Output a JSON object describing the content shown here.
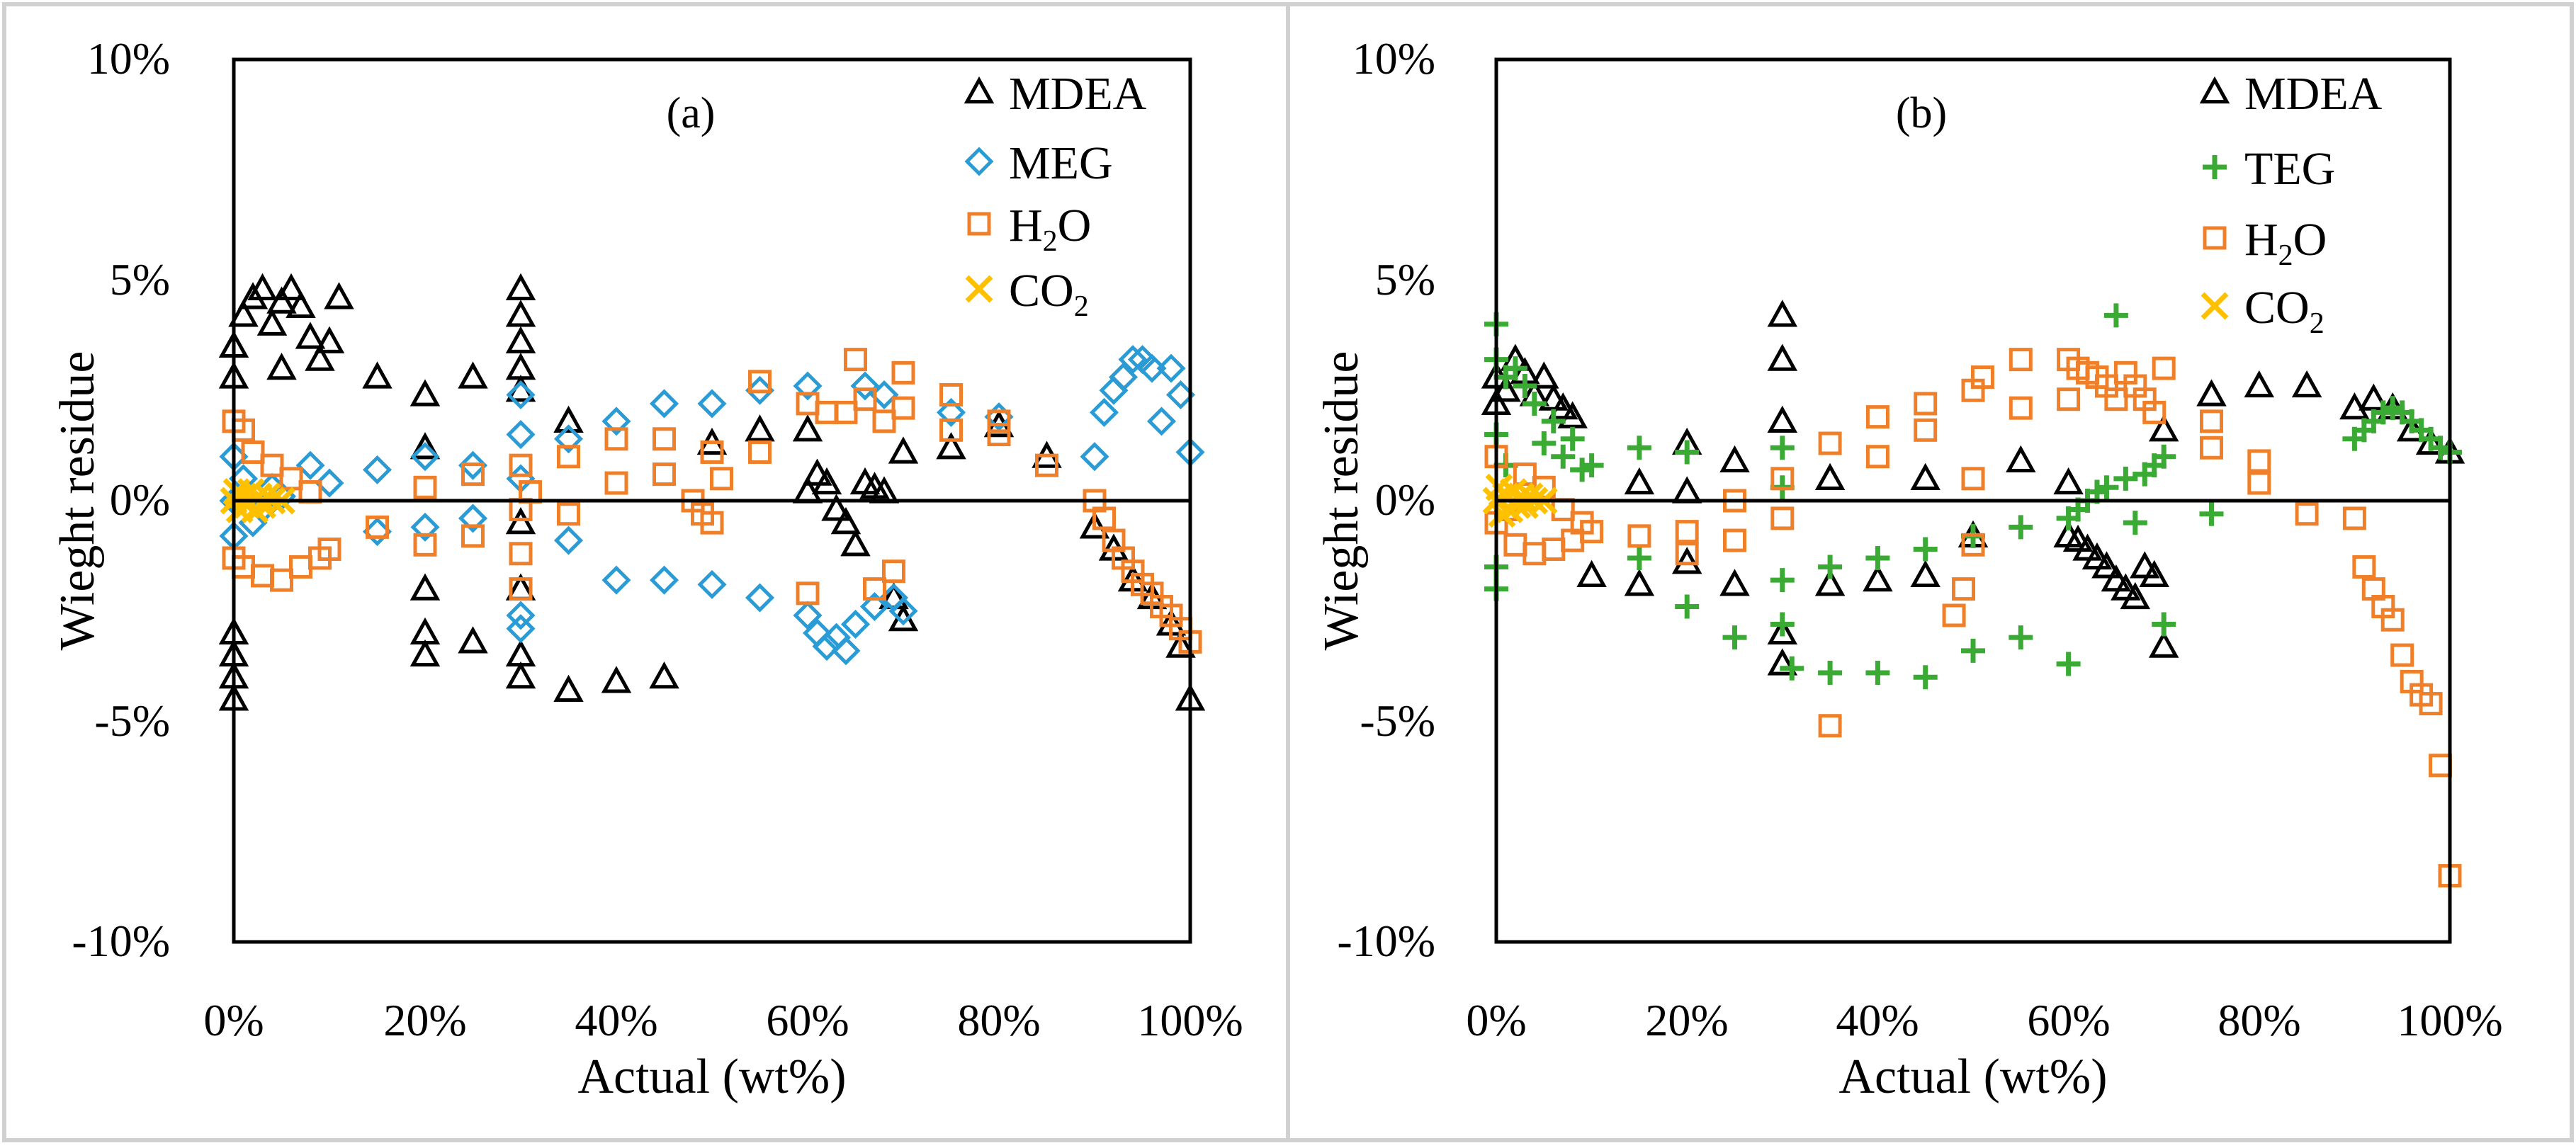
{
  "colors": {
    "MDEA": "#000000",
    "MEG": "#2a9bd4",
    "TEG": "#3aaa35",
    "H2O": "#f07f2a",
    "CO2": "#ffc000",
    "panel_border": "#d0d0d0"
  },
  "legend_text": {
    "MDEA": "MDEA",
    "MEG": "MEG",
    "TEG": "TEG",
    "H2O_main": "H",
    "H2O_sub": "2",
    "H2O_tail": "O",
    "CO2_main": "CO",
    "CO2_sub": "2"
  },
  "chart_data": [
    {
      "type": "scatter",
      "panel_label": "(a)",
      "xlabel": "Actual (wt%)",
      "ylabel": "Wieght residue",
      "xlim": [
        0,
        100
      ],
      "ylim": [
        -10,
        10
      ],
      "x_ticks": [
        "0%",
        "20%",
        "40%",
        "60%",
        "80%",
        "100%"
      ],
      "y_ticks": [
        "10%",
        "5%",
        "0%",
        "-5%",
        "-10%"
      ],
      "grid": false,
      "legend_position": "top-right",
      "series": [
        {
          "name": "MDEA",
          "marker": "triangle",
          "x": [
            0,
            0,
            0,
            0,
            0,
            0,
            1,
            2,
            3,
            4,
            5,
            5,
            6,
            7,
            8,
            9,
            10,
            11,
            15,
            20,
            20,
            20,
            20,
            20,
            25,
            25,
            30,
            30,
            30,
            30,
            30,
            30,
            30,
            30,
            30,
            35,
            35,
            40,
            45,
            50,
            55,
            60,
            60,
            61,
            62,
            63,
            64,
            65,
            66,
            67,
            68,
            69,
            70,
            70,
            75,
            80,
            85,
            90,
            92,
            94,
            96,
            98,
            99,
            100
          ],
          "y": [
            -4.5,
            -4,
            -3.5,
            -3,
            3.5,
            2.8,
            4.2,
            4.6,
            4.8,
            4,
            3,
            4.5,
            4.8,
            4.4,
            3.7,
            3.2,
            3.6,
            4.6,
            2.8,
            2.4,
            1.2,
            -2,
            -3,
            -3.5,
            2.8,
            -3.2,
            4.8,
            4.2,
            3.6,
            3,
            2.5,
            -0.5,
            -2,
            -3.5,
            -4,
            -4.3,
            1.8,
            -4.1,
            -4,
            1.3,
            1.6,
            1.6,
            0.2,
            0.6,
            0.4,
            -0.2,
            -0.5,
            -1,
            0.4,
            0.3,
            0.2,
            -2.2,
            -2.7,
            1.1,
            1.2,
            1.7,
            1,
            -0.6,
            -1.1,
            -1.8,
            -2.2,
            -2.8,
            -3.3,
            -4.5
          ]
        },
        {
          "name": "MEG",
          "marker": "diamond",
          "x": [
            0,
            0,
            0,
            1,
            2,
            3,
            4,
            5,
            8,
            10,
            15,
            15,
            20,
            20,
            25,
            25,
            30,
            30,
            30,
            30,
            30,
            35,
            35,
            40,
            40,
            45,
            45,
            50,
            50,
            55,
            55,
            60,
            60,
            61,
            62,
            63,
            64,
            65,
            66,
            67,
            68,
            69,
            70,
            75,
            80,
            90,
            91,
            92,
            93,
            94,
            95,
            96,
            97,
            98,
            99,
            100
          ],
          "y": [
            1,
            0,
            -0.8,
            0.5,
            -0.5,
            -0.2,
            0.3,
            0.1,
            0.8,
            0.4,
            0.7,
            -0.7,
            1,
            -0.6,
            0.8,
            -0.4,
            2.4,
            1.5,
            0.5,
            -2.6,
            -2.9,
            1.4,
            -0.9,
            1.8,
            -1.8,
            2.2,
            -1.8,
            2.2,
            -1.9,
            2.5,
            -2.2,
            2.6,
            -2.6,
            -3,
            -3.3,
            -3.1,
            -3.4,
            -2.8,
            2.6,
            -2.4,
            2.4,
            -2.2,
            -2.5,
            2,
            1.9,
            1,
            2,
            2.5,
            2.8,
            3.2,
            3.2,
            3,
            1.8,
            3,
            2.4,
            1.1
          ]
        },
        {
          "name": "H2O",
          "marker": "square",
          "x": [
            0,
            0,
            1,
            1,
            2,
            3,
            4,
            5,
            6,
            7,
            8,
            9,
            10,
            15,
            20,
            20,
            25,
            25,
            30,
            30,
            30,
            30,
            31,
            35,
            35,
            40,
            40,
            45,
            45,
            48,
            49,
            50,
            50,
            51,
            55,
            55,
            60,
            60,
            62,
            64,
            65,
            66,
            67,
            68,
            69,
            70,
            70,
            75,
            75,
            80,
            80,
            85,
            90,
            91,
            92,
            93,
            94,
            95,
            96,
            97,
            98,
            99,
            100
          ],
          "y": [
            1.8,
            -1.3,
            1.6,
            -1.5,
            1.1,
            -1.7,
            0.8,
            -1.8,
            0.5,
            -1.5,
            0.2,
            -1.3,
            -1.1,
            -0.6,
            0.3,
            -1,
            0.6,
            -0.8,
            0.8,
            -0.2,
            -1.2,
            -2,
            0.2,
            1,
            -0.3,
            1.4,
            0.4,
            1.4,
            0.6,
            0,
            -0.3,
            1.1,
            -0.5,
            0.5,
            2.7,
            1.1,
            2.2,
            -2.1,
            2,
            2,
            3.2,
            2.3,
            -2,
            1.8,
            -1.6,
            2.9,
            2.1,
            2.4,
            1.6,
            1.5,
            1.8,
            0.8,
            0,
            -0.4,
            -0.9,
            -1.3,
            -1.6,
            -1.9,
            -2.1,
            -2.4,
            -2.6,
            -2.9,
            -3.2
          ]
        },
        {
          "name": "CO2",
          "marker": "x",
          "x": [
            0,
            0.3,
            0.6,
            1,
            1.4,
            1.8,
            2.2,
            2.6,
            3,
            3.5,
            4,
            5
          ],
          "y": [
            0,
            0.2,
            -0.2,
            0.1,
            -0.1,
            0.2,
            -0.2,
            0.1,
            -0.1,
            0.1,
            0,
            0
          ]
        }
      ]
    },
    {
      "type": "scatter",
      "panel_label": "(b)",
      "xlabel": "Actual (wt%)",
      "ylabel": "Wieght residue",
      "xlim": [
        0,
        100
      ],
      "ylim": [
        -10,
        10
      ],
      "x_ticks": [
        "0%",
        "20%",
        "40%",
        "60%",
        "80%",
        "100%"
      ],
      "y_ticks": [
        "10%",
        "5%",
        "0%",
        "-5%",
        "-10%"
      ],
      "grid": false,
      "legend_position": "top-right",
      "series": [
        {
          "name": "MDEA",
          "marker": "triangle",
          "x": [
            0,
            0,
            1,
            2,
            3,
            4,
            5,
            6,
            7,
            8,
            10,
            15,
            15,
            20,
            20,
            20,
            25,
            25,
            30,
            30,
            30,
            30,
            30,
            35,
            35,
            40,
            45,
            45,
            50,
            55,
            60,
            60,
            61,
            62,
            63,
            64,
            65,
            66,
            67,
            68,
            69,
            70,
            70,
            75,
            80,
            85,
            90,
            92,
            94,
            96,
            98,
            100
          ],
          "y": [
            2.8,
            2.2,
            2.5,
            3.2,
            2.9,
            2.4,
            2.8,
            2.3,
            2.1,
            1.9,
            -1.7,
            0.4,
            -1.9,
            1.3,
            0.2,
            -1.4,
            0.9,
            -1.9,
            4.2,
            3.2,
            1.8,
            -3,
            -3.7,
            0.5,
            -1.9,
            -1.8,
            0.5,
            -1.7,
            -0.8,
            0.9,
            0.4,
            -0.8,
            -0.9,
            -1.1,
            -1.3,
            -1.5,
            -1.8,
            -2,
            -2.2,
            -1.5,
            -1.7,
            -3.3,
            1.6,
            2.4,
            2.6,
            2.6,
            2.1,
            2.3,
            2.1,
            1.6,
            1.3,
            1.1
          ]
        },
        {
          "name": "TEG",
          "marker": "plus",
          "x": [
            0,
            0,
            0,
            0,
            0,
            1,
            1,
            2,
            3,
            4,
            5,
            6,
            7,
            8,
            9,
            10,
            15,
            15,
            20,
            20,
            25,
            30,
            30,
            30,
            30,
            31,
            35,
            35,
            40,
            40,
            45,
            45,
            50,
            50,
            55,
            55,
            60,
            60,
            61,
            62,
            63,
            64,
            65,
            66,
            67,
            68,
            69,
            70,
            70,
            75,
            90,
            91,
            92,
            93,
            94,
            95,
            96,
            97,
            98,
            99,
            100
          ],
          "y": [
            4,
            3.2,
            1.5,
            -1.5,
            -2,
            2.8,
            0.8,
            3,
            2.6,
            2.2,
            1.3,
            1.8,
            1,
            1.4,
            0.7,
            0.8,
            1.2,
            -1.3,
            1.1,
            -2.4,
            -3.1,
            1.2,
            0.3,
            -1.8,
            -2.8,
            -3.8,
            -1.5,
            -3.9,
            -1.3,
            -3.9,
            -1.1,
            -4,
            -0.8,
            -3.4,
            -0.6,
            -3.1,
            -0.4,
            -3.7,
            -0.2,
            0,
            0.2,
            0.3,
            4.2,
            0.5,
            -0.5,
            0.6,
            0.8,
            1,
            -2.8,
            -0.3,
            1.4,
            1.6,
            1.8,
            2,
            2.1,
            2,
            1.8,
            1.6,
            1.4,
            1.2,
            1.1
          ]
        },
        {
          "name": "H2O",
          "marker": "square",
          "x": [
            0,
            0,
            1,
            2,
            3,
            4,
            5,
            6,
            7,
            8,
            9,
            10,
            15,
            20,
            20,
            25,
            25,
            30,
            30,
            35,
            35,
            40,
            40,
            45,
            45,
            48,
            49,
            50,
            50,
            50,
            51,
            55,
            55,
            60,
            60,
            61,
            62,
            63,
            64,
            65,
            66,
            67,
            68,
            69,
            70,
            75,
            75,
            80,
            80,
            85,
            90,
            91,
            92,
            93,
            94,
            95,
            96,
            97,
            98,
            99,
            100
          ],
          "y": [
            1,
            -0.5,
            -0.2,
            -1,
            0.6,
            -1.2,
            0.3,
            -1.1,
            -0.2,
            -0.9,
            -0.5,
            -0.7,
            -0.8,
            -1.2,
            -0.7,
            -0.9,
            0,
            -0.4,
            0.5,
            1.3,
            -5.1,
            1.9,
            1,
            2.2,
            1.6,
            -2.6,
            -2,
            2.5,
            0.5,
            -1,
            2.8,
            3.2,
            2.1,
            3.2,
            2.3,
            3,
            2.9,
            2.8,
            2.6,
            2.3,
            2.9,
            2.6,
            2.3,
            2,
            3,
            1.2,
            1.8,
            0.9,
            0.4,
            -0.3,
            -0.4,
            -1.5,
            -2,
            -2.4,
            -2.7,
            -3.5,
            -4.1,
            -4.4,
            -4.6,
            -6,
            -8.5
          ]
        },
        {
          "name": "CO2",
          "marker": "x",
          "x": [
            0,
            0.3,
            0.6,
            1,
            1.4,
            1.8,
            2.2,
            2.6,
            3,
            3.5,
            4,
            5
          ],
          "y": [
            0,
            0.3,
            -0.3,
            0.1,
            -0.2,
            0.2,
            -0.1,
            0.1,
            -0.1,
            0.1,
            0,
            0
          ]
        }
      ]
    }
  ]
}
